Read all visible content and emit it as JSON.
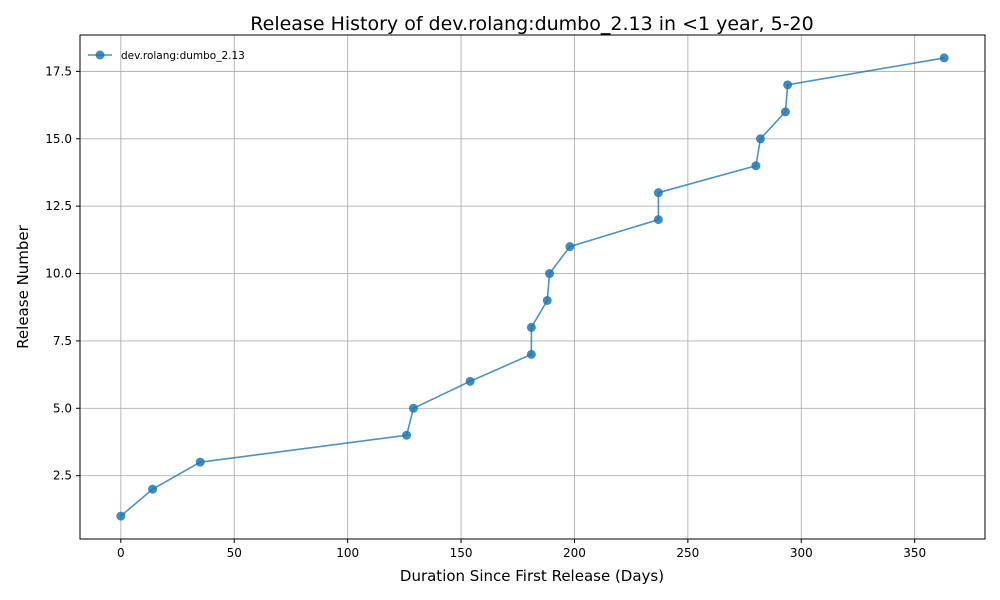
{
  "chart_data": {
    "type": "line",
    "title": "Release History of dev.rolang:dumbo_2.13 in <1 year, 5-20",
    "xlabel": "Duration Since First Release (Days)",
    "ylabel": "Release Number",
    "xlim": [
      -18,
      381
    ],
    "ylim": [
      0.15,
      18.85
    ],
    "xticks": [
      0,
      50,
      100,
      150,
      200,
      250,
      300,
      350
    ],
    "yticks": [
      2.5,
      5.0,
      7.5,
      10.0,
      12.5,
      15.0,
      17.5
    ],
    "xtick_labels": [
      "0",
      "50",
      "100",
      "150",
      "200",
      "250",
      "300",
      "350"
    ],
    "ytick_labels": [
      "2.5",
      "5.0",
      "7.5",
      "10.0",
      "12.5",
      "15.0",
      "17.5"
    ],
    "grid": true,
    "legend_position": "top-left",
    "series": [
      {
        "name": "dev.rolang:dumbo_2.13",
        "color": "#1f77b4",
        "marker": "circle",
        "x": [
          0,
          14,
          35,
          126,
          129,
          154,
          181,
          181,
          188,
          189,
          198,
          237,
          237,
          280,
          282,
          293,
          294,
          363
        ],
        "y": [
          1,
          2,
          3,
          4,
          5,
          6,
          7,
          8,
          9,
          10,
          11,
          12,
          13,
          14,
          15,
          16,
          17,
          18
        ]
      }
    ]
  }
}
